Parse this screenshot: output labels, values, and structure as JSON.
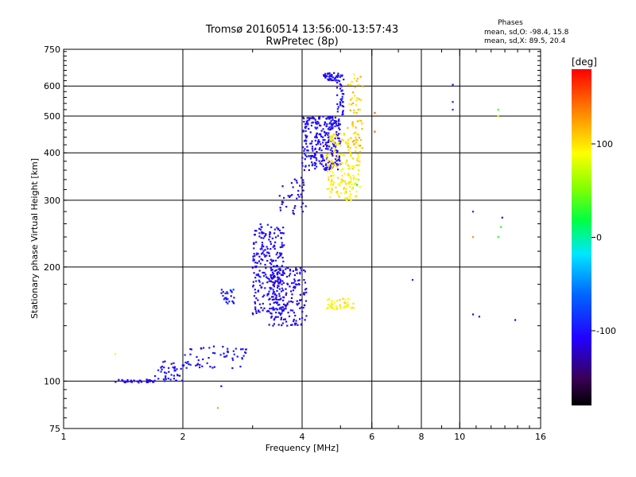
{
  "header": {
    "title_line1": "Tromsø 20160514 13:56:00-13:57:43",
    "title_line2": "RwPretec (8p)"
  },
  "stats": {
    "heading": "Phases",
    "line_o": "mean, sd,O: -98.4, 15.8",
    "line_x": "mean, sd,X:  89.5, 20.4"
  },
  "colorbar": {
    "label": "[deg]",
    "ticks": [
      {
        "value": 100,
        "label": "100"
      },
      {
        "value": 0,
        "label": "0"
      },
      {
        "value": -100,
        "label": "-100"
      }
    ],
    "range": [
      -180,
      180
    ]
  },
  "chart_data": {
    "type": "scatter",
    "xlabel": "Frequency [MHz]",
    "ylabel": "Stationary phase Virtual Height [km]",
    "x_scale": "log",
    "y_scale": "log",
    "xlim": [
      1,
      16
    ],
    "ylim": [
      75,
      750
    ],
    "x_ticks": [
      {
        "value": 1,
        "label": "1"
      },
      {
        "value": 2,
        "label": "2"
      },
      {
        "value": 4,
        "label": "4"
      },
      {
        "value": 6,
        "label": "6"
      },
      {
        "value": 8,
        "label": "8"
      },
      {
        "value": 10,
        "label": "10"
      },
      {
        "value": 16,
        "label": "16"
      }
    ],
    "y_ticks": [
      {
        "value": 75,
        "label": "75"
      },
      {
        "value": 100,
        "label": "100"
      },
      {
        "value": 200,
        "label": "200"
      },
      {
        "value": 300,
        "label": "300"
      },
      {
        "value": 400,
        "label": "400"
      },
      {
        "value": 500,
        "label": "500"
      },
      {
        "value": 600,
        "label": "600"
      },
      {
        "value": 750,
        "label": "750"
      }
    ],
    "grid": true,
    "grid_x": [
      2,
      4,
      6,
      8,
      10
    ],
    "grid_y": [
      100,
      200,
      300,
      400,
      500,
      600
    ],
    "color_variable": "phase [deg]",
    "point_groups": [
      {
        "x": [
          1.35,
          1.7
        ],
        "y": [
          99,
          101
        ],
        "phase": -110,
        "n": 40
      },
      {
        "x": [
          1.7,
          2.0
        ],
        "y": [
          100,
          113
        ],
        "phase": -105,
        "n": 40
      },
      {
        "x": [
          2.0,
          2.9
        ],
        "y": [
          108,
          125
        ],
        "phase": -100,
        "n": 60
      },
      {
        "x": [
          2.5,
          2.7
        ],
        "y": [
          158,
          175
        ],
        "phase": -95,
        "n": 25
      },
      {
        "x": [
          3.0,
          3.6
        ],
        "y": [
          150,
          260
        ],
        "phase": -105,
        "n": 260
      },
      {
        "x": [
          3.3,
          4.1
        ],
        "y": [
          140,
          200
        ],
        "phase": -110,
        "n": 180
      },
      {
        "x": [
          3.5,
          4.1
        ],
        "y": [
          275,
          345
        ],
        "phase": -110,
        "n": 40
      },
      {
        "x": [
          4.0,
          5.0
        ],
        "y": [
          360,
          500
        ],
        "phase": -105,
        "n": 300
      },
      {
        "x": [
          4.5,
          5.0
        ],
        "y": [
          620,
          650
        ],
        "phase": -105,
        "n": 40
      },
      {
        "x": [
          4.9,
          5.1
        ],
        "y": [
          500,
          650
        ],
        "phase": -100,
        "n": 40
      },
      {
        "x": [
          4.6,
          5.6
        ],
        "y": [
          300,
          450
        ],
        "phase": 95,
        "n": 180
      },
      {
        "x": [
          5.2,
          5.7
        ],
        "y": [
          400,
          650
        ],
        "phase": 110,
        "n": 60
      },
      {
        "x": [
          4.6,
          5.4
        ],
        "y": [
          155,
          165
        ],
        "phase": 95,
        "n": 40
      }
    ],
    "isolated_points": [
      {
        "x": 1.35,
        "y": 118,
        "phase": 100
      },
      {
        "x": 2.45,
        "y": 85,
        "phase": 110
      },
      {
        "x": 2.5,
        "y": 97,
        "phase": -100
      },
      {
        "x": 7.6,
        "y": 185,
        "phase": -100
      },
      {
        "x": 9.6,
        "y": 605,
        "phase": -100
      },
      {
        "x": 9.6,
        "y": 545,
        "phase": -100
      },
      {
        "x": 9.6,
        "y": 520,
        "phase": -100
      },
      {
        "x": 10.8,
        "y": 280,
        "phase": -100
      },
      {
        "x": 10.8,
        "y": 240,
        "phase": 120
      },
      {
        "x": 10.8,
        "y": 150,
        "phase": -100
      },
      {
        "x": 11.2,
        "y": 148,
        "phase": -100
      },
      {
        "x": 12.5,
        "y": 520,
        "phase": 20
      },
      {
        "x": 12.5,
        "y": 500,
        "phase": 110
      },
      {
        "x": 12.5,
        "y": 240,
        "phase": 40
      },
      {
        "x": 12.8,
        "y": 270,
        "phase": -100
      },
      {
        "x": 12.7,
        "y": 255,
        "phase": 10
      },
      {
        "x": 13.8,
        "y": 145,
        "phase": -100
      },
      {
        "x": 6.1,
        "y": 510,
        "phase": 140
      },
      {
        "x": 6.1,
        "y": 455,
        "phase": 140
      },
      {
        "x": 5.5,
        "y": 330,
        "phase": 20
      }
    ]
  }
}
